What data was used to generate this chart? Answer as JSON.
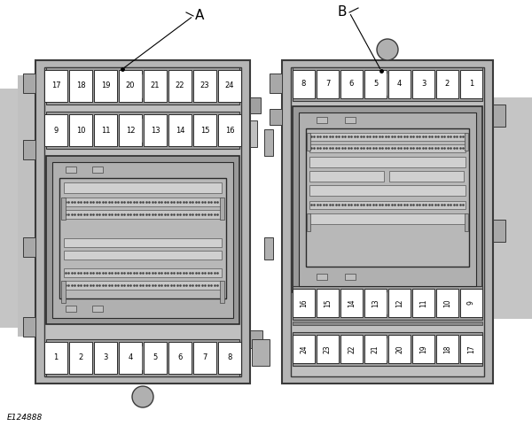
{
  "bg_color": "#ffffff",
  "panel_bg": "#b5b5b5",
  "panel_border": "#3a3a3a",
  "panel_inner_bg": "#c0c0c0",
  "fuse_bg": "#ffffff",
  "fuse_border": "#2a2a2a",
  "connector_outer_bg": "#9a9a9a",
  "connector_inner_bg": "#b0b0b0",
  "connector_core_bg": "#c5c5c5",
  "bar_bg": "#9e9e9e",
  "label_A": "A",
  "label_B": "B",
  "label_ref": "E124888",
  "fuse_A_top": [
    "17",
    "18",
    "19",
    "20",
    "21",
    "22",
    "23",
    "24"
  ],
  "fuse_A_mid": [
    "9",
    "10",
    "11",
    "12",
    "13",
    "14",
    "15",
    "16"
  ],
  "fuse_A_bot": [
    "1",
    "2",
    "3",
    "4",
    "5",
    "6",
    "7",
    "8"
  ],
  "fuse_B_top": [
    "8",
    "7",
    "6",
    "5",
    "4",
    "3",
    "2",
    "1"
  ],
  "fuse_B_mid": [
    "16",
    "15",
    "14",
    "13",
    "12",
    "11",
    "10",
    "9"
  ],
  "fuse_B_bot": [
    "24",
    "23",
    "22",
    "21",
    "20",
    "19",
    "18",
    "17"
  ]
}
